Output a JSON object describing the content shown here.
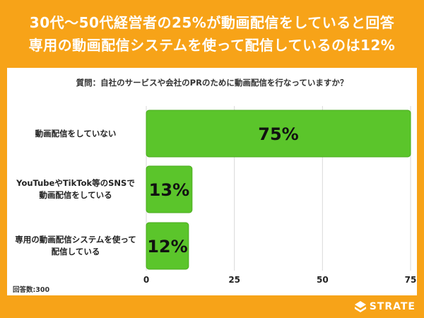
{
  "header": {
    "line1": "30代〜50代経営者の25%が動画配信をしていると回答",
    "line2": "専用の動画配信システムを使って配信しているのは12%"
  },
  "question": "質問：自社のサービスや会社のPRのために動画配信を行なっていますか？",
  "respondents": "回答数:300",
  "logo": {
    "text": "STRATE",
    "icon": "strate-logo-icon"
  },
  "colors": {
    "accent": "#f7a318",
    "bar": "#5bc52b",
    "bar_stroke": "#4aab1e",
    "grid": "#d9d9d9"
  },
  "chart_data": {
    "type": "bar",
    "orientation": "horizontal",
    "categories": [
      [
        "動画配信をしていない"
      ],
      [
        "YouTubeやTikTok等のSNSで",
        "動画配信をしている"
      ],
      [
        "専用の動画配信システムを使って",
        "配信している"
      ]
    ],
    "values": [
      75,
      13,
      12
    ],
    "value_labels": [
      "75%",
      "13%",
      "12%"
    ],
    "xlim": [
      0,
      75
    ],
    "xticks": [
      0,
      25,
      50,
      75
    ],
    "grid": true,
    "legend": "none"
  }
}
